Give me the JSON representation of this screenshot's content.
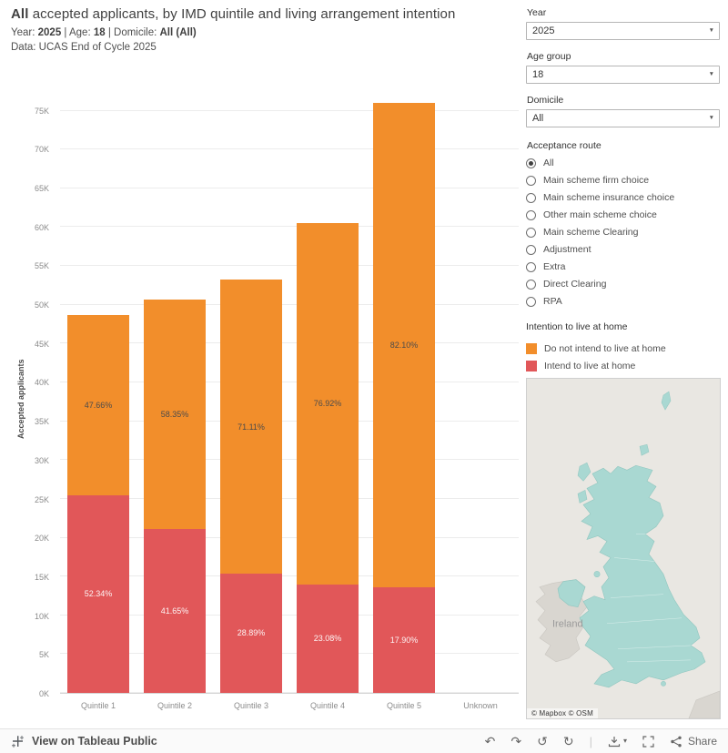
{
  "header": {
    "title_bold": "All",
    "title_rest": " accepted applicants, by IMD quintile and living arrangement intention",
    "year_label": "Year: ",
    "year_value": "2025",
    "sep_age": " | Age: ",
    "age_value": "18",
    "sep_domicile": " | Domicile: ",
    "domicile_value": "All (All)",
    "data_source": "Data: UCAS End of Cycle 2025"
  },
  "filters": {
    "year": {
      "label": "Year",
      "value": "2025"
    },
    "age": {
      "label": "Age group",
      "value": "18"
    },
    "domicile": {
      "label": "Domicile",
      "value": "All"
    },
    "acceptance_route": {
      "label": "Acceptance route",
      "selected": "All",
      "options": [
        "All",
        "Main scheme firm choice",
        "Main scheme insurance choice",
        "Other main scheme choice",
        "Main scheme Clearing",
        "Adjustment",
        "Extra",
        "Direct Clearing",
        "RPA"
      ]
    }
  },
  "legend": {
    "title": "Intention to live at home",
    "items": [
      {
        "label": "Do not intend to live at home",
        "color": "#F28E2B"
      },
      {
        "label": "Intend to live at home",
        "color": "#E15759"
      }
    ]
  },
  "chart_data": {
    "type": "bar",
    "stacked": true,
    "title": "All accepted applicants, by IMD quintile and living arrangement intention",
    "categories": [
      "Quintile 1",
      "Quintile 2",
      "Quintile 3",
      "Quintile 4",
      "Quintile 5",
      "Unknown"
    ],
    "series": [
      {
        "name": "Intend to live at home",
        "color": "#E15759",
        "values": [
          25500,
          21100,
          15400,
          14000,
          13600,
          0
        ],
        "pct_labels": [
          "52.34%",
          "41.65%",
          "28.89%",
          "23.08%",
          "17.90%",
          ""
        ]
      },
      {
        "name": "Do not intend to live at home",
        "color": "#F28E2B",
        "values": [
          23200,
          29600,
          37800,
          46500,
          62400,
          0
        ],
        "pct_labels": [
          "47.66%",
          "58.35%",
          "71.11%",
          "76.92%",
          "82.10%",
          ""
        ]
      }
    ],
    "totals": [
      48700,
      50700,
      53200,
      60500,
      76000,
      0
    ],
    "xlabel": "",
    "ylabel": "Accepted applicants",
    "ylim": [
      0,
      78000
    ],
    "ytick_step": 5000,
    "yticks": [
      "0K",
      "5K",
      "10K",
      "15K",
      "20K",
      "25K",
      "30K",
      "35K",
      "40K",
      "45K",
      "50K",
      "55K",
      "60K",
      "65K",
      "70K",
      "75K"
    ],
    "grid": true,
    "legend_position": "right"
  },
  "map": {
    "label_ireland": "Ireland",
    "attribution": "© Mapbox © OSM",
    "land_uk_color": "#A9D8D2",
    "land_other_color": "#D9D6D0",
    "sea_color": "#E9E7E2"
  },
  "toolbar": {
    "view_label": "View on Tableau Public",
    "share_label": "Share"
  }
}
